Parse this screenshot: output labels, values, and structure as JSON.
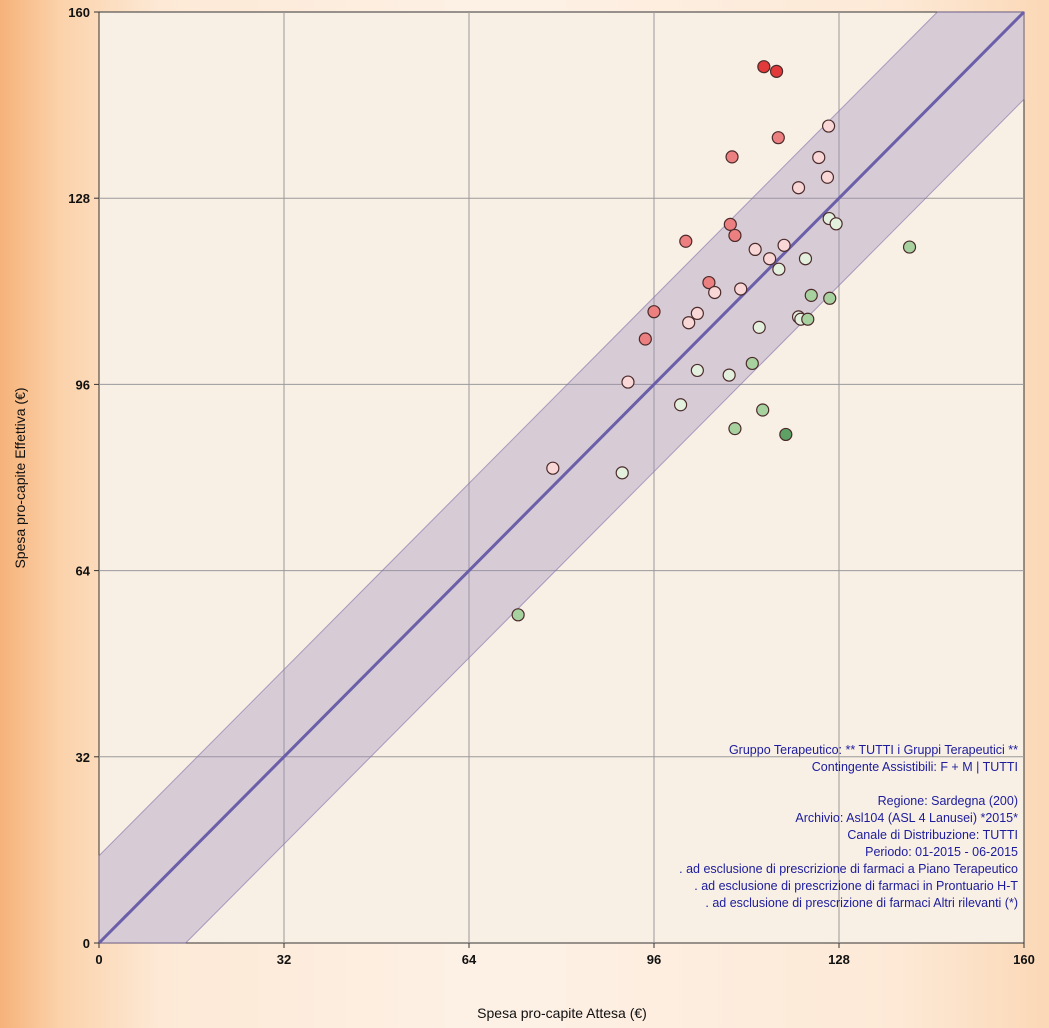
{
  "chart_data": {
    "type": "scatter",
    "title": "",
    "xlabel": "Spesa pro-capite Attesa (€)",
    "ylabel": "Spesa pro-capite Effettiva (€)",
    "xlim": [
      0,
      160
    ],
    "ylim": [
      0,
      160
    ],
    "xticks": [
      "0",
      "32",
      "64",
      "96",
      "128",
      "160"
    ],
    "yticks": [
      "0",
      "32",
      "64",
      "96",
      "128",
      "160"
    ],
    "grid": true,
    "reference_line": {
      "from": [
        0,
        0
      ],
      "to": [
        160,
        160
      ],
      "color": "#6a5fa8"
    },
    "tolerance_band": {
      "offset": 15,
      "color": "#9a8ab8"
    },
    "colors": {
      "red_dark": "#e23a3a",
      "red_mid": "#ec7f7f",
      "red_light": "#f9d7d7",
      "green_light": "#e3f0dd",
      "green_mid": "#a8d1a0",
      "green_dark": "#5da165",
      "marker_edge": "#4a2a2a"
    },
    "points": [
      {
        "x": 115.0,
        "y": 150.6,
        "c": "red_dark"
      },
      {
        "x": 117.2,
        "y": 149.8,
        "c": "red_dark"
      },
      {
        "x": 117.5,
        "y": 138.4,
        "c": "red_mid"
      },
      {
        "x": 109.5,
        "y": 135.1,
        "c": "red_mid"
      },
      {
        "x": 126.2,
        "y": 140.4,
        "c": "red_light"
      },
      {
        "x": 124.5,
        "y": 135.0,
        "c": "red_light"
      },
      {
        "x": 126.0,
        "y": 131.6,
        "c": "red_light"
      },
      {
        "x": 121.0,
        "y": 129.8,
        "c": "red_light"
      },
      {
        "x": 109.2,
        "y": 123.5,
        "c": "red_mid"
      },
      {
        "x": 110.0,
        "y": 121.6,
        "c": "red_mid"
      },
      {
        "x": 101.5,
        "y": 120.6,
        "c": "red_mid"
      },
      {
        "x": 113.5,
        "y": 119.2,
        "c": "red_light"
      },
      {
        "x": 118.5,
        "y": 119.9,
        "c": "red_light"
      },
      {
        "x": 116.0,
        "y": 117.6,
        "c": "red_light"
      },
      {
        "x": 105.5,
        "y": 113.5,
        "c": "red_mid"
      },
      {
        "x": 106.5,
        "y": 111.8,
        "c": "red_light"
      },
      {
        "x": 111.0,
        "y": 112.4,
        "c": "red_light"
      },
      {
        "x": 96.0,
        "y": 108.5,
        "c": "red_mid"
      },
      {
        "x": 103.5,
        "y": 108.2,
        "c": "red_light"
      },
      {
        "x": 102.0,
        "y": 106.6,
        "c": "red_light"
      },
      {
        "x": 94.5,
        "y": 103.8,
        "c": "red_mid"
      },
      {
        "x": 91.5,
        "y": 96.4,
        "c": "red_light"
      },
      {
        "x": 78.5,
        "y": 81.6,
        "c": "red_light"
      },
      {
        "x": 126.3,
        "y": 124.5,
        "c": "green_light"
      },
      {
        "x": 127.5,
        "y": 123.6,
        "c": "green_light"
      },
      {
        "x": 140.2,
        "y": 119.6,
        "c": "green_mid"
      },
      {
        "x": 122.2,
        "y": 117.6,
        "c": "green_light"
      },
      {
        "x": 117.6,
        "y": 115.8,
        "c": "green_light"
      },
      {
        "x": 123.2,
        "y": 111.3,
        "c": "green_mid"
      },
      {
        "x": 126.4,
        "y": 110.8,
        "c": "green_mid"
      },
      {
        "x": 121.0,
        "y": 107.6,
        "c": "green_light"
      },
      {
        "x": 121.4,
        "y": 107.2,
        "c": "green_light"
      },
      {
        "x": 122.6,
        "y": 107.2,
        "c": "green_mid"
      },
      {
        "x": 114.2,
        "y": 105.8,
        "c": "green_light"
      },
      {
        "x": 113.0,
        "y": 99.6,
        "c": "green_mid"
      },
      {
        "x": 103.5,
        "y": 98.4,
        "c": "green_light"
      },
      {
        "x": 109.0,
        "y": 97.6,
        "c": "green_light"
      },
      {
        "x": 100.6,
        "y": 92.5,
        "c": "green_light"
      },
      {
        "x": 114.8,
        "y": 91.6,
        "c": "green_mid"
      },
      {
        "x": 110.0,
        "y": 88.4,
        "c": "green_mid"
      },
      {
        "x": 118.8,
        "y": 87.4,
        "c": "green_dark"
      },
      {
        "x": 90.5,
        "y": 80.8,
        "c": "green_light"
      },
      {
        "x": 72.5,
        "y": 56.4,
        "c": "green_mid"
      }
    ]
  },
  "legend_info": {
    "lines": [
      "Gruppo Terapeutico: ** TUTTI i Gruppi Terapeutici **",
      "Contingente Assistibili: F + M   |  TUTTI",
      "",
      "Regione: Sardegna (200)",
      "Archivio: Asl104 (ASL 4 Lanusei) *2015*",
      "Canale di Distribuzione: TUTTI",
      "Periodo: 01-2015 - 06-2015",
      ". ad esclusione di prescrizione di farmaci a Piano Terapeutico",
      ". ad esclusione di prescrizione di farmaci in Prontuario H-T",
      ". ad esclusione di prescrizione di farmaci Altri rilevanti (*)"
    ]
  }
}
